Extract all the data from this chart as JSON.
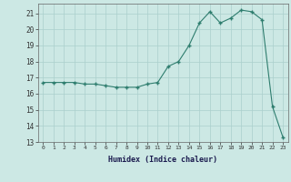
{
  "x": [
    0,
    1,
    2,
    3,
    4,
    5,
    6,
    7,
    8,
    9,
    10,
    11,
    12,
    13,
    14,
    15,
    16,
    17,
    18,
    19,
    20,
    21,
    22,
    23
  ],
  "y": [
    16.7,
    16.7,
    16.7,
    16.7,
    16.6,
    16.6,
    16.5,
    16.4,
    16.4,
    16.4,
    16.6,
    16.7,
    17.7,
    18.0,
    19.0,
    20.4,
    21.1,
    20.4,
    20.7,
    21.2,
    21.1,
    20.6,
    15.2,
    13.3
  ],
  "xlabel": "Humidex (Indice chaleur)",
  "line_color": "#2e7d6e",
  "bg_color": "#cce8e4",
  "grid_color": "#aacfcc",
  "ylim": [
    13,
    21.6
  ],
  "xlim": [
    -0.5,
    23.5
  ],
  "yticks": [
    13,
    14,
    15,
    16,
    17,
    18,
    19,
    20,
    21
  ],
  "xticks": [
    0,
    1,
    2,
    3,
    4,
    5,
    6,
    7,
    8,
    9,
    10,
    11,
    12,
    13,
    14,
    15,
    16,
    17,
    18,
    19,
    20,
    21,
    22,
    23
  ]
}
